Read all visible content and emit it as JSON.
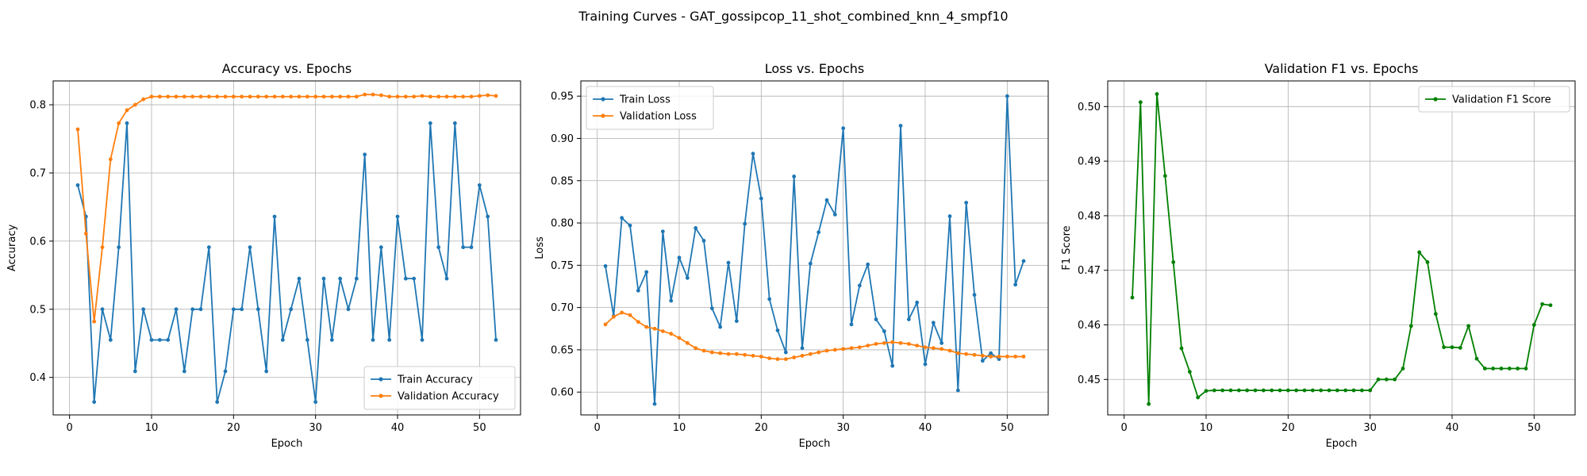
{
  "figure": {
    "suptitle": "Training Curves - GAT_gossipcop_11_shot_combined_knn_4_smpf10"
  },
  "chart_data": [
    {
      "type": "line",
      "title": "Accuracy vs. Epochs",
      "xlabel": "Epoch",
      "ylabel": "Accuracy",
      "xlim": [
        -2,
        55
      ],
      "ylim": [
        0.345,
        0.835
      ],
      "xticks": [
        0,
        10,
        20,
        30,
        40,
        50
      ],
      "yticks": [
        0.4,
        0.5,
        0.6,
        0.7,
        0.8
      ],
      "grid": true,
      "legend": "lower right",
      "x": [
        1,
        2,
        3,
        4,
        5,
        6,
        7,
        8,
        9,
        10,
        11,
        12,
        13,
        14,
        15,
        16,
        17,
        18,
        19,
        20,
        21,
        22,
        23,
        24,
        25,
        26,
        27,
        28,
        29,
        30,
        31,
        32,
        33,
        34,
        35,
        36,
        37,
        38,
        39,
        40,
        41,
        42,
        43,
        44,
        45,
        46,
        47,
        48,
        49,
        50,
        51,
        52
      ],
      "series": [
        {
          "name": "Train Accuracy",
          "color": "#1f77b4",
          "values": [
            0.682,
            0.636,
            0.364,
            0.5,
            0.455,
            0.591,
            0.773,
            0.409,
            0.5,
            0.455,
            0.455,
            0.455,
            0.5,
            0.409,
            0.5,
            0.5,
            0.591,
            0.364,
            0.409,
            0.5,
            0.5,
            0.591,
            0.5,
            0.409,
            0.636,
            0.455,
            0.5,
            0.545,
            0.455,
            0.364,
            0.545,
            0.455,
            0.545,
            0.5,
            0.545,
            0.727,
            0.455,
            0.591,
            0.455,
            0.636,
            0.545,
            0.545,
            0.455,
            0.773,
            0.591,
            0.545,
            0.773,
            0.591,
            0.591,
            0.682,
            0.636,
            0.455
          ]
        },
        {
          "name": "Validation Accuracy",
          "color": "#ff7f0e",
          "values": [
            0.764,
            0.611,
            0.482,
            0.591,
            0.72,
            0.773,
            0.792,
            0.8,
            0.808,
            0.812,
            0.812,
            0.812,
            0.812,
            0.812,
            0.812,
            0.812,
            0.812,
            0.812,
            0.812,
            0.812,
            0.812,
            0.812,
            0.812,
            0.812,
            0.812,
            0.812,
            0.812,
            0.812,
            0.812,
            0.812,
            0.812,
            0.812,
            0.812,
            0.812,
            0.812,
            0.815,
            0.815,
            0.814,
            0.812,
            0.812,
            0.812,
            0.812,
            0.813,
            0.812,
            0.812,
            0.812,
            0.812,
            0.812,
            0.812,
            0.813,
            0.814,
            0.813
          ]
        }
      ]
    },
    {
      "type": "line",
      "title": "Loss vs. Epochs",
      "xlabel": "Epoch",
      "ylabel": "Loss",
      "xlim": [
        -2,
        55
      ],
      "ylim": [
        0.573,
        0.968
      ],
      "xticks": [
        0,
        10,
        20,
        30,
        40,
        50
      ],
      "yticks": [
        0.6,
        0.65,
        0.7,
        0.75,
        0.8,
        0.85,
        0.9,
        0.95
      ],
      "grid": true,
      "legend": "upper left",
      "x": [
        1,
        2,
        3,
        4,
        5,
        6,
        7,
        8,
        9,
        10,
        11,
        12,
        13,
        14,
        15,
        16,
        17,
        18,
        19,
        20,
        21,
        22,
        23,
        24,
        25,
        26,
        27,
        28,
        29,
        30,
        31,
        32,
        33,
        34,
        35,
        36,
        37,
        38,
        39,
        40,
        41,
        42,
        43,
        44,
        45,
        46,
        47,
        48,
        49,
        50,
        51,
        52
      ],
      "series": [
        {
          "name": "Train Loss",
          "color": "#1f77b4",
          "values": [
            0.749,
            0.69,
            0.806,
            0.797,
            0.72,
            0.742,
            0.586,
            0.79,
            0.708,
            0.759,
            0.735,
            0.794,
            0.779,
            0.699,
            0.677,
            0.753,
            0.684,
            0.799,
            0.882,
            0.829,
            0.71,
            0.673,
            0.647,
            0.855,
            0.652,
            0.752,
            0.789,
            0.827,
            0.81,
            0.912,
            0.68,
            0.726,
            0.751,
            0.686,
            0.672,
            0.631,
            0.915,
            0.686,
            0.706,
            0.633,
            0.682,
            0.658,
            0.808,
            0.602,
            0.824,
            0.715,
            0.637,
            0.646,
            0.639,
            0.95,
            0.727,
            0.755
          ]
        },
        {
          "name": "Validation Loss",
          "color": "#ff7f0e",
          "values": [
            0.68,
            0.689,
            0.694,
            0.691,
            0.683,
            0.677,
            0.675,
            0.672,
            0.669,
            0.664,
            0.658,
            0.652,
            0.649,
            0.647,
            0.646,
            0.645,
            0.645,
            0.644,
            0.643,
            0.642,
            0.64,
            0.639,
            0.639,
            0.641,
            0.643,
            0.645,
            0.647,
            0.649,
            0.65,
            0.651,
            0.652,
            0.653,
            0.655,
            0.657,
            0.658,
            0.659,
            0.658,
            0.657,
            0.655,
            0.653,
            0.652,
            0.651,
            0.649,
            0.646,
            0.645,
            0.644,
            0.643,
            0.642,
            0.642,
            0.642,
            0.642,
            0.642
          ]
        }
      ]
    },
    {
      "type": "line",
      "title": "Validation F1 vs. Epochs",
      "xlabel": "Epoch",
      "ylabel": "F1 Score",
      "xlim": [
        -2,
        55
      ],
      "ylim": [
        0.4435,
        0.5047
      ],
      "xticks": [
        0,
        10,
        20,
        30,
        40,
        50
      ],
      "yticks": [
        0.45,
        0.46,
        0.47,
        0.48,
        0.49,
        0.5
      ],
      "grid": true,
      "legend": "upper right",
      "x": [
        1,
        2,
        3,
        4,
        5,
        6,
        7,
        8,
        9,
        10,
        11,
        12,
        13,
        14,
        15,
        16,
        17,
        18,
        19,
        20,
        21,
        22,
        23,
        24,
        25,
        26,
        27,
        28,
        29,
        30,
        31,
        32,
        33,
        34,
        35,
        36,
        37,
        38,
        39,
        40,
        41,
        42,
        43,
        44,
        45,
        46,
        47,
        48,
        49,
        50,
        51,
        52
      ],
      "series": [
        {
          "name": "Validation F1 Score",
          "color": "#008000",
          "values": [
            0.465,
            0.5008,
            0.4455,
            0.5023,
            0.4873,
            0.4715,
            0.4557,
            0.4514,
            0.4467,
            0.4479,
            0.448,
            0.448,
            0.448,
            0.448,
            0.448,
            0.448,
            0.448,
            0.448,
            0.448,
            0.448,
            0.448,
            0.448,
            0.448,
            0.448,
            0.448,
            0.448,
            0.448,
            0.448,
            0.448,
            0.448,
            0.45,
            0.45,
            0.45,
            0.452,
            0.4598,
            0.4733,
            0.4715,
            0.462,
            0.4559,
            0.4559,
            0.4558,
            0.4598,
            0.4538,
            0.452,
            0.452,
            0.452,
            0.452,
            0.452,
            0.452,
            0.46,
            0.4638,
            0.4636
          ]
        }
      ]
    }
  ]
}
